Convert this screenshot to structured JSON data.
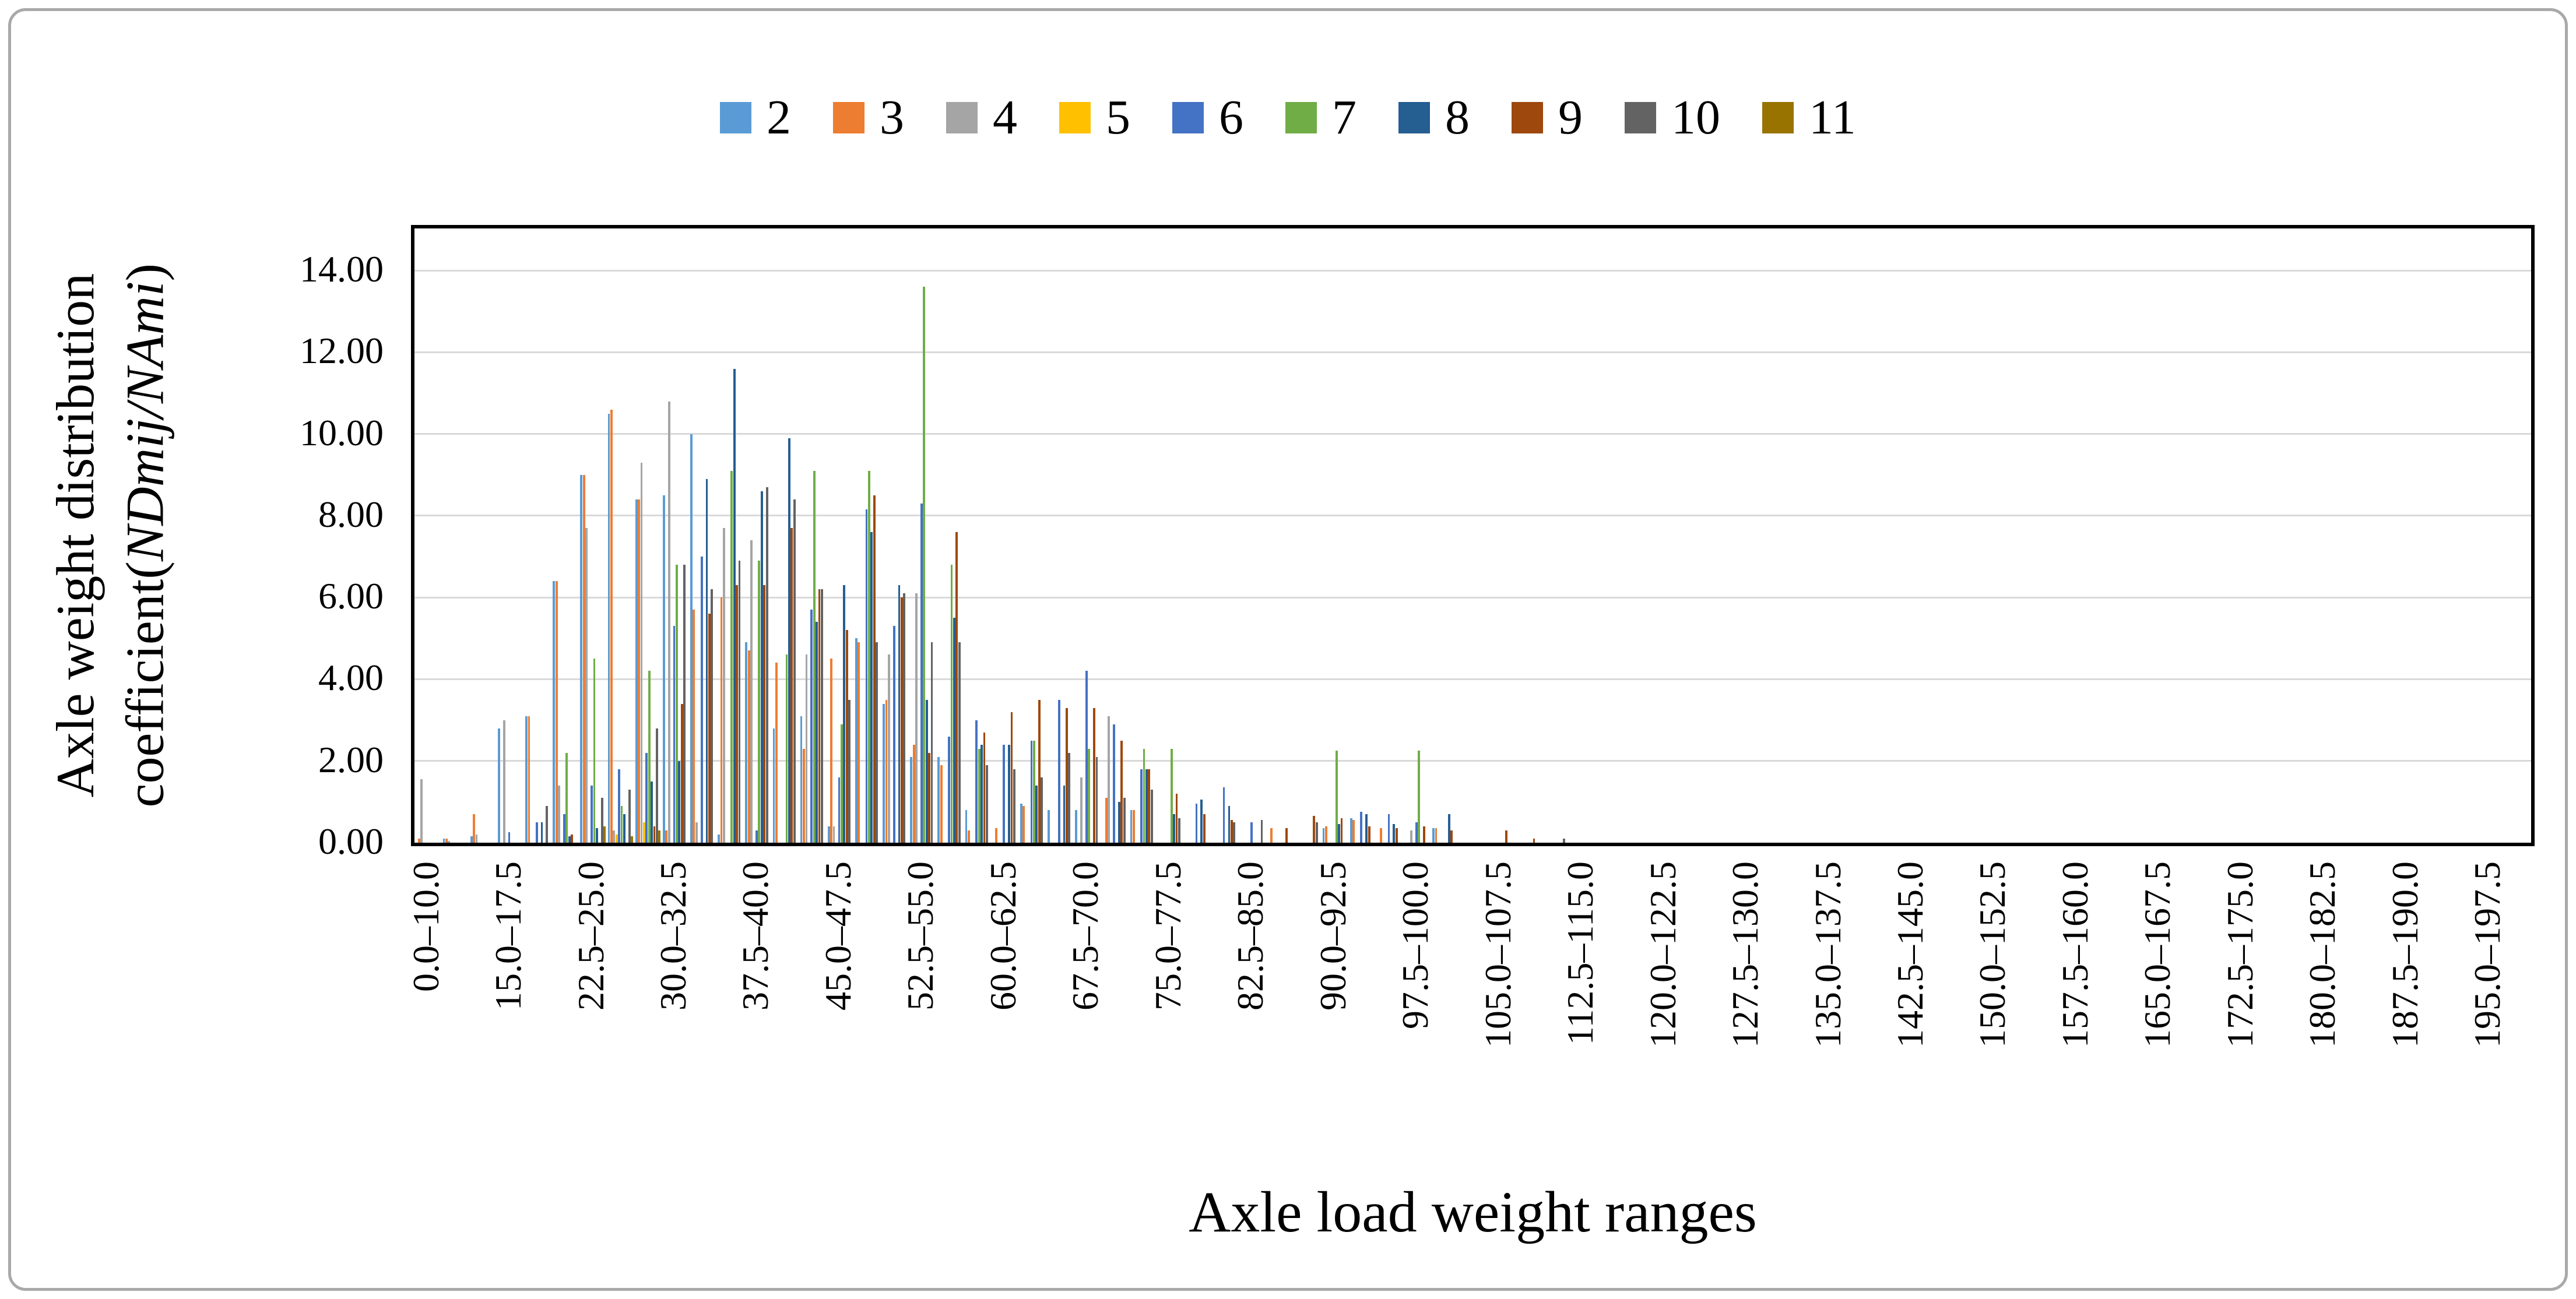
{
  "legend": {
    "items": [
      {
        "label": "2",
        "color": "#5B9BD5"
      },
      {
        "label": "3",
        "color": "#ED7D31"
      },
      {
        "label": "4",
        "color": "#A5A5A5"
      },
      {
        "label": "5",
        "color": "#FFC000"
      },
      {
        "label": "6",
        "color": "#4472C4"
      },
      {
        "label": "7",
        "color": "#70AD47"
      },
      {
        "label": "8",
        "color": "#255E91"
      },
      {
        "label": "9",
        "color": "#9E480E"
      },
      {
        "label": "10",
        "color": "#636363"
      },
      {
        "label": "11",
        "color": "#997300"
      }
    ]
  },
  "y_axis": {
    "title_line1": "Axle weight distribution",
    "title_line2_prefix": "coefficient(",
    "title_line2_italic": "NDmij/NAmi",
    "title_line2_suffix": ")",
    "ticks": [
      "0.00",
      "2.00",
      "4.00",
      "6.00",
      "8.00",
      "10.00",
      "12.00",
      "14.00"
    ],
    "max": 15.03
  },
  "x_axis": {
    "title": "Axle load weight ranges",
    "label_every": 3
  },
  "chart_data": {
    "type": "bar",
    "title": "",
    "xlabel": "Axle load weight ranges",
    "ylabel": "Axle weight distribution coefficient(NDmij/NAmi)",
    "ylim": [
      0,
      15.03
    ],
    "gridline_values": [
      2,
      4,
      6,
      8,
      10,
      12,
      14
    ],
    "grid": true,
    "legend_position": "top",
    "categories": [
      "0.0–10.0",
      "10.0–12.5",
      "12.5–15.0",
      "15.0–17.5",
      "17.5–20.0",
      "20.0–22.5",
      "22.5–25.0",
      "25.0–27.5",
      "27.5–30.0",
      "30.0–32.5",
      "32.5–35.0",
      "35.0–37.5",
      "37.5–40.0",
      "40.0–42.5",
      "42.5–45.0",
      "45.0–47.5",
      "47.5–50.0",
      "50.0–52.5",
      "52.5–55.0",
      "55.0–57.5",
      "57.5–60.0",
      "60.0–62.5",
      "62.5–65.0",
      "65.0–67.5",
      "67.5–70.0",
      "70.0–72.5",
      "72.5–75.0",
      "75.0–77.5",
      "77.5–80.0",
      "80.0–82.5",
      "82.5–85.0",
      "85.0–87.5",
      "87.5–90.0",
      "90.0–92.5",
      "92.5–95.0",
      "95.0–97.5",
      "97.5–100.0",
      "100.0–102.5",
      "102.5–105.0",
      "105.0–107.5",
      "107.5–110.0",
      "110.0–112.5",
      "112.5–115.0",
      "115.0–117.5",
      "117.5–120.0",
      "120.0–122.5",
      "122.5–125.0",
      "125.0–127.5",
      "127.5–130.0",
      "130.0–132.5",
      "132.5–135.0",
      "135.0–137.5",
      "137.5–140.0",
      "140.0–142.5",
      "142.5–145.0",
      "145.0–147.5",
      "147.5–150.0",
      "150.0–152.5",
      "152.5–155.0",
      "155.0–157.5",
      "157.5–160.0",
      "160.0–162.5",
      "162.5–165.0",
      "165.0–167.5",
      "167.5–170.0",
      "170.0–172.5",
      "172.5–175.0",
      "175.0–177.5",
      "177.5–180.0",
      "180.0–182.5",
      "182.5–185.0",
      "185.0–187.5",
      "187.5–190.0",
      "190.0–192.5",
      "192.5–195.0",
      "195.0–197.5",
      "197.5–200.0"
    ],
    "series": [
      {
        "name": "2",
        "color": "#5B9BD5",
        "values": [
          0,
          0.1,
          0.15,
          2.8,
          3.1,
          6.4,
          9,
          10.5,
          8.4,
          8.5,
          10,
          0.2,
          4.9,
          2.8,
          3.1,
          0.4,
          5,
          3.4,
          2.1,
          2.1,
          0.8,
          0,
          0.95,
          0.8,
          0.8,
          0,
          0.8,
          0,
          0,
          0,
          0,
          0,
          0,
          0.35,
          0.6,
          0,
          0,
          0.35,
          0,
          0,
          0,
          0,
          0,
          0,
          0,
          0,
          0,
          0,
          0,
          0,
          0,
          0,
          0,
          0,
          0,
          0,
          0,
          0,
          0,
          0,
          0,
          0,
          0,
          0,
          0,
          0,
          0,
          0,
          0,
          0,
          0,
          0,
          0,
          0,
          0,
          0,
          0
        ]
      },
      {
        "name": "3",
        "color": "#ED7D31",
        "values": [
          0.1,
          0.1,
          0.7,
          0,
          3.1,
          6.4,
          9,
          10.6,
          8.4,
          0.3,
          5.7,
          6,
          4.7,
          4.4,
          2.3,
          4.5,
          4.9,
          3.5,
          2.4,
          1.9,
          0.3,
          0.35,
          0.9,
          0,
          0,
          1.1,
          0.8,
          0,
          0,
          0,
          0,
          0.35,
          0,
          0.4,
          0.55,
          0.35,
          0,
          0.35,
          0,
          0,
          0,
          0,
          0,
          0,
          0,
          0,
          0,
          0,
          0,
          0,
          0,
          0,
          0,
          0,
          0,
          0,
          0,
          0,
          0,
          0,
          0,
          0,
          0,
          0,
          0,
          0,
          0,
          0,
          0,
          0,
          0,
          0,
          0,
          0,
          0,
          0,
          0
        ]
      },
      {
        "name": "4",
        "color": "#A5A5A5",
        "values": [
          1.55,
          0.05,
          0.2,
          3,
          0,
          1.4,
          7.7,
          0.3,
          9.3,
          10.8,
          0.5,
          7.7,
          7.4,
          0,
          4.6,
          0.4,
          0,
          4.6,
          6.1,
          0,
          0,
          0,
          0,
          0,
          1.6,
          3.1,
          0,
          0,
          0,
          0,
          0,
          0,
          0,
          0,
          0,
          0,
          0.3,
          0,
          0,
          0,
          0,
          0,
          0,
          0,
          0,
          0,
          0,
          0,
          0,
          0,
          0,
          0,
          0,
          0,
          0,
          0,
          0,
          0,
          0,
          0,
          0,
          0,
          0,
          0,
          0,
          0,
          0,
          0,
          0,
          0,
          0,
          0,
          0,
          0,
          0,
          0,
          0
        ]
      },
      {
        "name": "5",
        "color": "#FFC000",
        "values": [
          0,
          0,
          0,
          0,
          0,
          0,
          0,
          0.2,
          0.5,
          0,
          0,
          0,
          0,
          0,
          0,
          0,
          0,
          0,
          0,
          0,
          0,
          0,
          0,
          0,
          0,
          0,
          0,
          0,
          0,
          0,
          0,
          0,
          0,
          0,
          0,
          0,
          0,
          0,
          0,
          0,
          0,
          0,
          0,
          0,
          0,
          0,
          0,
          0,
          0,
          0,
          0,
          0,
          0,
          0,
          0,
          0,
          0,
          0,
          0,
          0,
          0,
          0,
          0,
          0,
          0,
          0,
          0,
          0,
          0,
          0,
          0,
          0,
          0,
          0,
          0,
          0,
          0
        ]
      },
      {
        "name": "6",
        "color": "#4472C4",
        "values": [
          0,
          0,
          0,
          0.25,
          0.5,
          0.7,
          1.4,
          1.8,
          2.2,
          5.3,
          7,
          0,
          0.3,
          0,
          5.7,
          1.6,
          8.15,
          5.3,
          8.3,
          2.6,
          3,
          2.4,
          2.5,
          3.5,
          4.2,
          2.9,
          1.8,
          0,
          0.95,
          1.35,
          0.5,
          0,
          0,
          0,
          0.75,
          0.7,
          0.5,
          0,
          0,
          0,
          0,
          0,
          0,
          0,
          0,
          0,
          0,
          0,
          0,
          0,
          0,
          0,
          0,
          0,
          0,
          0,
          0,
          0,
          0,
          0,
          0,
          0,
          0,
          0,
          0,
          0,
          0,
          0,
          0,
          0,
          0,
          0,
          0,
          0,
          0,
          0,
          0
        ]
      },
      {
        "name": "7",
        "color": "#70AD47",
        "values": [
          0,
          0,
          0,
          0,
          0,
          2.2,
          4.5,
          0.9,
          4.2,
          6.8,
          0,
          9.1,
          6.9,
          4.6,
          9.1,
          2.9,
          9.1,
          0,
          13.6,
          6.8,
          2.3,
          0,
          2.5,
          0,
          2.3,
          0,
          2.3,
          2.3,
          0,
          0,
          0,
          0,
          0,
          2.26,
          0,
          0,
          2.25,
          0,
          0,
          0,
          0,
          0,
          0,
          0,
          0,
          0,
          0,
          0,
          0,
          0,
          0,
          0,
          0,
          0,
          0,
          0,
          0,
          0,
          0,
          0,
          0,
          0,
          0,
          0,
          0,
          0,
          0,
          0,
          0,
          0,
          0,
          0,
          0,
          0,
          0,
          0,
          0
        ]
      },
      {
        "name": "8",
        "color": "#255E91",
        "values": [
          0,
          0,
          0,
          0,
          0.5,
          0.15,
          0.35,
          0.7,
          1.5,
          2,
          8.9,
          11.6,
          8.6,
          9.9,
          5.4,
          6.3,
          7.6,
          6.3,
          3.5,
          5.5,
          2.4,
          2.4,
          1.4,
          1.4,
          0,
          1,
          1.8,
          0.7,
          1.05,
          0.9,
          0,
          0,
          0,
          0.45,
          0.7,
          0.45,
          0,
          0.7,
          0,
          0,
          0,
          0,
          0,
          0,
          0,
          0,
          0,
          0,
          0,
          0,
          0,
          0,
          0,
          0,
          0,
          0,
          0,
          0,
          0,
          0,
          0,
          0,
          0,
          0,
          0,
          0,
          0,
          0,
          0,
          0,
          0,
          0,
          0,
          0,
          0,
          0,
          0
        ]
      },
      {
        "name": "9",
        "color": "#9E480E",
        "values": [
          0,
          0,
          0,
          0,
          0,
          0.2,
          0,
          0,
          0.4,
          3.4,
          5.6,
          6.3,
          6.3,
          7.7,
          6.2,
          5.2,
          8.5,
          6,
          2.2,
          7.6,
          2.7,
          3.2,
          3.5,
          3.3,
          3.3,
          2.5,
          1.8,
          1.2,
          0.7,
          0.55,
          0,
          0.35,
          0.65,
          0.6,
          0.4,
          0.35,
          0.4,
          0.3,
          0,
          0.3,
          0.1,
          0,
          0,
          0,
          0,
          0,
          0,
          0,
          0,
          0,
          0,
          0,
          0,
          0,
          0,
          0,
          0,
          0,
          0,
          0,
          0,
          0,
          0,
          0,
          0,
          0,
          0,
          0,
          0,
          0,
          0,
          0,
          0,
          0,
          0,
          0,
          0
        ]
      },
      {
        "name": "10",
        "color": "#636363",
        "values": [
          0,
          0,
          0,
          0,
          0.9,
          0,
          1.1,
          1.3,
          2.8,
          6.8,
          6.2,
          6.9,
          8.7,
          8.4,
          6.2,
          3.5,
          4.9,
          6.1,
          4.9,
          4.9,
          1.9,
          1.8,
          1.6,
          2.2,
          2.1,
          1.1,
          1.3,
          0.6,
          0,
          0.5,
          0.55,
          0,
          0.5,
          0,
          0,
          0,
          0,
          0,
          0,
          0,
          0,
          0.1,
          0,
          0,
          0,
          0,
          0,
          0,
          0,
          0,
          0,
          0,
          0,
          0,
          0,
          0,
          0,
          0,
          0,
          0,
          0,
          0,
          0,
          0,
          0,
          0,
          0,
          0,
          0,
          0,
          0,
          0,
          0,
          0,
          0,
          0,
          0
        ]
      },
      {
        "name": "11",
        "color": "#997300",
        "values": [
          0,
          0,
          0,
          0,
          0,
          0,
          0.4,
          0.15,
          0.3,
          0,
          0,
          0,
          0,
          0,
          0,
          0,
          0,
          0,
          0,
          0,
          0,
          0,
          0,
          0,
          0,
          0,
          0,
          0,
          0,
          0,
          0,
          0,
          0,
          0,
          0,
          0,
          0,
          0,
          0,
          0,
          0,
          0,
          0,
          0,
          0,
          0,
          0,
          0,
          0,
          0,
          0,
          0,
          0,
          0,
          0,
          0,
          0,
          0,
          0,
          0,
          0,
          0,
          0,
          0,
          0,
          0,
          0,
          0,
          0,
          0,
          0,
          0,
          0,
          0,
          0,
          0,
          0
        ]
      }
    ]
  }
}
